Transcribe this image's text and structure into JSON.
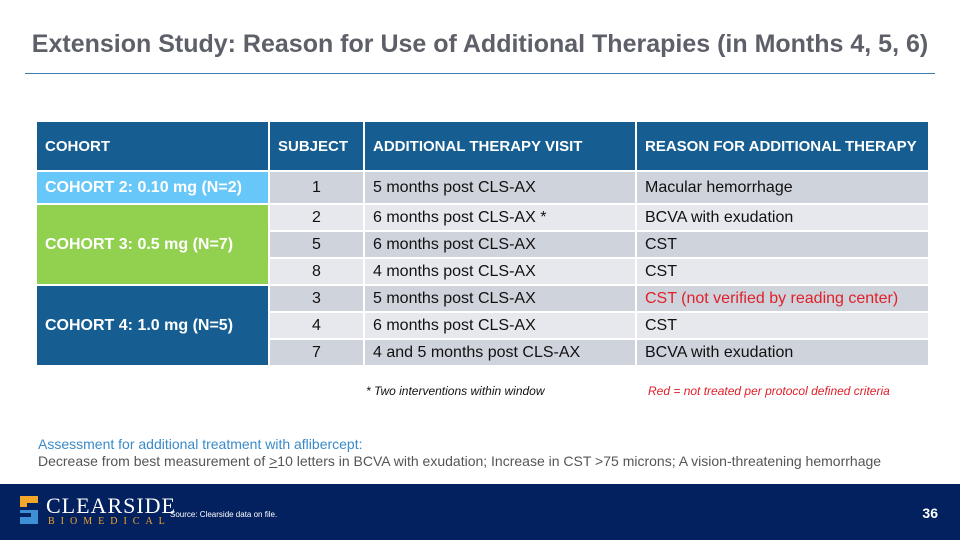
{
  "title": "Extension Study: Reason for Use of Additional Therapies (in Months 4, 5, 6)",
  "headers": [
    "COHORT",
    "SUBJECT",
    "ADDITIONAL THERAPY VISIT",
    "REASON FOR ADDITIONAL THERAPY"
  ],
  "cohorts": [
    {
      "label": "COHORT 2: 0.10 mg (N=2)",
      "color": "#66c7f8"
    },
    {
      "label": "COHORT 3: 0.5 mg (N=7)",
      "color": "#92d050"
    },
    {
      "label": "COHORT 4: 1.0 mg (N=5)",
      "color": "#165d92"
    }
  ],
  "rows": [
    {
      "subject": "1",
      "visit": "5 months post CLS-AX",
      "reason": "Macular hemorrhage"
    },
    {
      "subject": "2",
      "visit": "6 months post CLS-AX *",
      "reason": "BCVA with exudation"
    },
    {
      "subject": "5",
      "visit": "6 months post CLS-AX",
      "reason": "CST"
    },
    {
      "subject": "8",
      "visit": "4 months post CLS-AX",
      "reason": "CST"
    },
    {
      "subject": "3",
      "visit": "5 months post CLS-AX",
      "reason": "CST (not verified by reading center)"
    },
    {
      "subject": "4",
      "visit": "6 months post CLS-AX",
      "reason": "CST"
    },
    {
      "subject": "7",
      "visit": "4 and 5 months post CLS-AX",
      "reason": "BCVA with exudation"
    }
  ],
  "note_star": "* Two interventions within window",
  "note_red": "Red = not treated per protocol defined criteria",
  "assess_title": "Assessment for additional treatment with aflibercept:",
  "assess_pre": "Decrease from best measurement of ",
  "assess_ge": ">",
  "assess_post": "10 letters in BCVA with exudation; Increase in CST >75 microns; A vision-threatening hemorrhage",
  "logo_name": "CLEARSIDE",
  "logo_sub": "BIOMEDICAL",
  "source": "Source: Clearside data on file.",
  "page": "36"
}
